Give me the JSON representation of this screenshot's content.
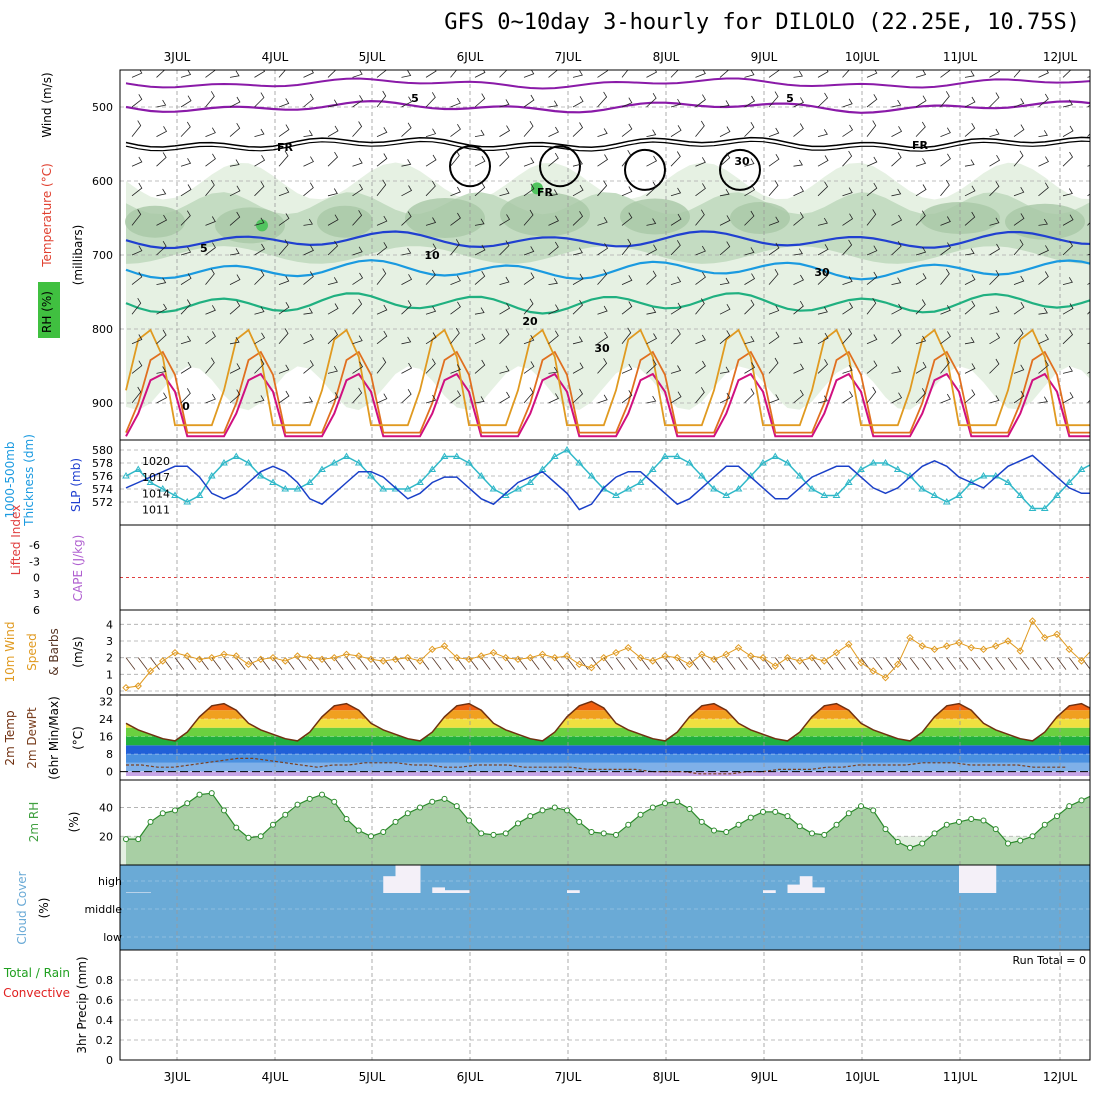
{
  "title": "GFS 0~10day 3-hourly for DILOLO (22.25E, 10.75S)",
  "dates": [
    "3JUL",
    "4JUL",
    "5JUL",
    "6JUL",
    "7JUL",
    "8JUL",
    "9JUL",
    "10JUL",
    "11JUL",
    "12JUL"
  ],
  "colors": {
    "purple": "#8a1aa8",
    "black": "#000000",
    "blue": "#2040d0",
    "lightblue": "#1a9ae0",
    "teal": "#20b080",
    "orange": "#e09a20",
    "darkorange": "#e07020",
    "magenta": "#d01080",
    "rh_fill": "#dfeedd",
    "cloud": "#6aaad6",
    "green": "#40a040"
  },
  "panels": {
    "upper_air": {
      "labels": [
        "Wind (m/s)",
        "Temperature (°C)",
        "RH (%)",
        "(millibars)"
      ],
      "pressure_ticks": [
        "500",
        "600",
        "700",
        "800",
        "900"
      ],
      "contour_labels": [
        "5",
        "5",
        "FR",
        "FR",
        "FR",
        "10",
        "20",
        "30",
        "30",
        "30",
        "0"
      ]
    },
    "thickness_slp": {
      "labels": [
        "1000-500mb",
        "Thickness (dm)",
        "SLP (mb)"
      ],
      "left_ticks": [
        "580",
        "578",
        "576",
        "574",
        "572"
      ],
      "right_ticks": [
        "1020",
        "1017",
        "1014",
        "1011"
      ]
    },
    "lifted_cape": {
      "labels": [
        "Lifted Index",
        "CAPE (J/kg)"
      ],
      "left_ticks": [
        "-6",
        "-3",
        "0",
        "3",
        "6"
      ]
    },
    "wind10m": {
      "labels": [
        "10m Wind",
        "Speed",
        "& Barbs",
        "(m/s)"
      ],
      "ticks": [
        "4",
        "3",
        "2",
        "1",
        "0"
      ]
    },
    "temp2m": {
      "labels": [
        "2m Temp",
        "2m DewPt",
        "(6hr Min/Max)",
        "(°C)"
      ],
      "ticks": [
        "32",
        "24",
        "16",
        "8",
        "0"
      ]
    },
    "rh2m": {
      "labels": [
        "2m RH",
        "(%)"
      ],
      "ticks": [
        "40",
        "20"
      ]
    },
    "cloud": {
      "labels": [
        "Cloud Cover",
        "(%)"
      ],
      "levels": [
        "high",
        "middle",
        "low"
      ]
    },
    "precip": {
      "labels": [
        "Total / Rain",
        "Convective",
        "3hr Precip (mm)"
      ],
      "ticks": [
        "0.8",
        "0.6",
        "0.4",
        "0.2",
        "0"
      ],
      "run_total": "Run Total = 0"
    }
  },
  "chart_data": [
    {
      "type": "line",
      "title": "1000-500mb Thickness (dm) / SLP (mb)",
      "series": [
        {
          "name": "1000-500mb Thickness (dm)",
          "axis": "left",
          "color": "#30b8c8",
          "values": [
            576,
            577,
            575,
            574,
            573,
            572,
            573,
            576,
            578,
            579,
            578,
            576,
            575,
            574,
            574,
            575,
            577,
            578,
            579,
            578,
            576,
            574,
            574,
            574,
            575,
            577,
            579,
            579,
            578,
            576,
            574,
            573,
            574,
            575,
            577,
            579,
            580,
            578,
            576,
            574,
            573,
            574,
            575,
            577,
            579,
            579,
            578,
            576,
            574,
            573,
            574,
            576,
            578,
            579,
            578,
            576,
            574,
            573,
            573,
            575,
            577,
            578,
            578,
            577,
            576,
            574,
            573,
            572,
            573,
            575,
            576,
            576,
            575,
            573,
            571,
            571,
            573,
            575,
            577,
            578,
            577,
            576,
            575,
            573,
            573,
            574,
            576,
            577,
            576,
            575,
            574
          ]
        },
        {
          "name": "SLP (mb)",
          "axis": "right",
          "color": "#1a40c8",
          "values": [
            1015,
            1016,
            1017,
            1018,
            1019,
            1019,
            1017,
            1014,
            1013,
            1014,
            1016,
            1018,
            1019,
            1018,
            1016,
            1013,
            1012,
            1014,
            1016,
            1018,
            1018,
            1017,
            1015,
            1013,
            1014,
            1016,
            1017,
            1017,
            1015,
            1013,
            1012,
            1014,
            1016,
            1017,
            1018,
            1016,
            1014,
            1011,
            1012,
            1015,
            1017,
            1018,
            1018,
            1016,
            1014,
            1012,
            1013,
            1015,
            1017,
            1019,
            1019,
            1017,
            1015,
            1013,
            1013,
            1015,
            1017,
            1018,
            1019,
            1019,
            1017,
            1015,
            1014,
            1015,
            1017,
            1019,
            1020,
            1019,
            1017,
            1016,
            1015,
            1017,
            1019,
            1020,
            1021,
            1019,
            1017,
            1015,
            1014,
            1014,
            1016,
            1018,
            1018,
            1017,
            1015,
            1013,
            1012,
            1013,
            1015,
            1016,
            1017
          ]
        }
      ],
      "left_range": [
        570,
        580
      ],
      "right_range": [
        1010,
        1022
      ]
    },
    {
      "type": "line",
      "title": "10m Wind Speed & Barbs (m/s)",
      "ylim": [
        0,
        4.5
      ],
      "series": [
        {
          "name": "10m Wind Speed",
          "color": "#e09a20",
          "values": [
            0.2,
            0.3,
            1.2,
            1.8,
            2.3,
            2.1,
            1.9,
            2.0,
            2.2,
            2.1,
            1.6,
            1.9,
            2.0,
            1.8,
            2.1,
            2.0,
            1.9,
            2.0,
            2.2,
            2.1,
            1.9,
            1.8,
            1.9,
            2.0,
            1.8,
            2.5,
            2.7,
            2.0,
            1.9,
            2.1,
            2.3,
            2.0,
            1.9,
            2.0,
            2.2,
            2.0,
            2.1,
            1.6,
            1.4,
            2.0,
            2.3,
            2.6,
            2.0,
            1.8,
            2.1,
            2.0,
            1.6,
            2.2,
            1.9,
            2.2,
            2.6,
            2.1,
            2.0,
            1.5,
            2.0,
            1.8,
            2.0,
            1.8,
            2.3,
            2.8,
            1.7,
            1.2,
            0.8,
            1.6,
            3.2,
            2.7,
            2.5,
            2.7,
            2.9,
            2.6,
            2.5,
            2.7,
            3.0,
            2.4,
            4.2,
            3.2,
            3.4,
            2.5,
            1.8,
            2.6,
            2.6,
            2.5,
            2.3,
            3.5,
            3.9,
            2.5,
            2.2,
            1.9,
            2.1,
            2.0,
            2.1,
            2.4
          ]
        }
      ]
    },
    {
      "type": "area",
      "title": "2m Temp / 2m DewPt (°C)",
      "ylim": [
        -2,
        34
      ],
      "series": [
        {
          "name": "2m Temp",
          "color": "#703010",
          "values": [
            22,
            19,
            17,
            15,
            14,
            18,
            25,
            30,
            31,
            28,
            22,
            19,
            17,
            15,
            14,
            18,
            25,
            30,
            31,
            28,
            22,
            19,
            17,
            15,
            14,
            18,
            25,
            30,
            31,
            28,
            22,
            19,
            17,
            15,
            14,
            18,
            25,
            30,
            32,
            29,
            22,
            19,
            17,
            15,
            14,
            18,
            25,
            30,
            31,
            28,
            22,
            19,
            17,
            15,
            14,
            18,
            25,
            30,
            31,
            28,
            22,
            19,
            17,
            15,
            14,
            18,
            25,
            30,
            31,
            28,
            22,
            19,
            17,
            15,
            14,
            18,
            25,
            30,
            31,
            28,
            22,
            19,
            17,
            15,
            14,
            18,
            25,
            30,
            32,
            29,
            22,
            19
          ]
        },
        {
          "name": "2m DewPt",
          "color": "#7a4020",
          "values": [
            3,
            3,
            2,
            2,
            3,
            4,
            5,
            6,
            6,
            5,
            4,
            3,
            2,
            3,
            3,
            4,
            4,
            4,
            3,
            3,
            2,
            2,
            3,
            3,
            3,
            2,
            2,
            2,
            2,
            1,
            1,
            1,
            1,
            0,
            0,
            0,
            -1,
            -1,
            -1,
            0,
            0,
            1,
            1,
            1,
            2,
            2,
            3,
            3,
            3,
            3,
            4,
            4,
            4,
            3,
            3,
            3,
            3,
            2,
            2,
            2
          ]
        }
      ]
    },
    {
      "type": "area",
      "title": "2m RH (%)",
      "ylim": [
        0,
        55
      ],
      "series": [
        {
          "name": "2m RH",
          "color": "#2c8a2c",
          "values": [
            18,
            18,
            30,
            36,
            38,
            43,
            49,
            50,
            38,
            26,
            19,
            20,
            28,
            35,
            42,
            46,
            49,
            44,
            32,
            24,
            20,
            23,
            30,
            36,
            40,
            44,
            46,
            41,
            31,
            22,
            21,
            22,
            29,
            34,
            38,
            40,
            38,
            30,
            23,
            22,
            21,
            28,
            35,
            40,
            43,
            44,
            39,
            30,
            24,
            23,
            28,
            33,
            37,
            37,
            34,
            27,
            22,
            21,
            28,
            36,
            41,
            38,
            25,
            16,
            12,
            15,
            22,
            28,
            30,
            32,
            31,
            25,
            15,
            17,
            20,
            28,
            34,
            41,
            45,
            49,
            48,
            38,
            24,
            18,
            20,
            26,
            34,
            40,
            47,
            47,
            38,
            25,
            18,
            19,
            27,
            34,
            38,
            41,
            40
          ]
        }
      ]
    },
    {
      "type": "bar",
      "title": "Cloud Cover (%) high",
      "ylim": [
        0,
        100
      ],
      "series": [
        {
          "name": "high",
          "values": [
            2,
            2,
            0,
            0,
            0,
            0,
            0,
            0,
            0,
            0,
            0,
            0,
            0,
            0,
            0,
            0,
            0,
            0,
            0,
            0,
            0,
            60,
            100,
            100,
            0,
            20,
            10,
            10,
            0,
            0,
            0,
            0,
            0,
            0,
            0,
            0,
            10,
            0,
            0,
            0,
            0,
            0,
            0,
            0,
            0,
            0,
            0,
            0,
            0,
            0,
            0,
            0,
            10,
            0,
            30,
            60,
            20,
            0,
            0,
            0,
            0,
            0,
            0,
            0,
            0,
            0,
            0,
            0,
            100,
            100,
            100,
            0,
            0,
            0,
            0,
            0,
            0,
            0,
            0,
            0,
            0,
            0,
            0,
            0,
            0,
            0,
            10,
            0,
            0,
            0,
            0,
            0,
            0,
            0
          ]
        }
      ]
    },
    {
      "type": "line",
      "title": "3hr Precip (mm)",
      "ylim": [
        0,
        1
      ],
      "series": [
        {
          "name": "Total / Rain",
          "values": []
        }
      ]
    }
  ]
}
